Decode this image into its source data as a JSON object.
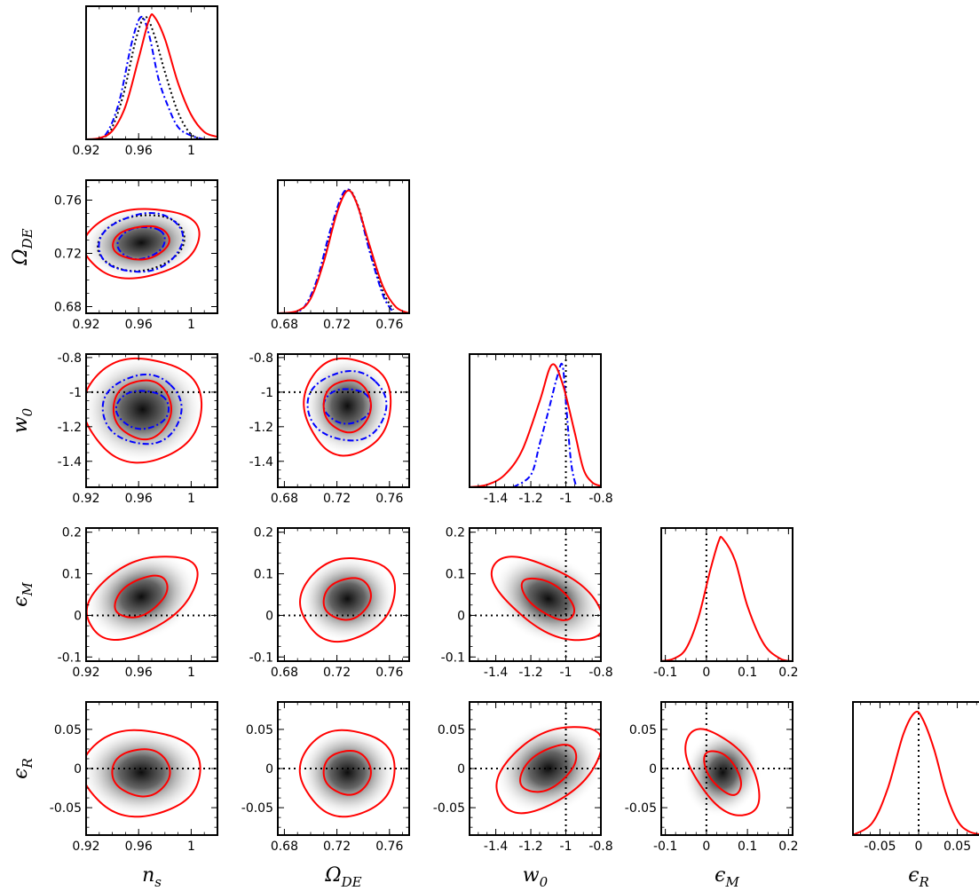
{
  "chart_data": {
    "type": "corner-plot",
    "parameters": [
      {
        "key": "ns",
        "symbol": "n",
        "subscript": "s",
        "range": [
          0.92,
          1.02
        ],
        "ticks": [
          0.92,
          0.96,
          1
        ],
        "tick_labels": [
          "0.92",
          "0.96",
          "1"
        ]
      },
      {
        "key": "ode",
        "symbol": "Ω",
        "subscript": "DE",
        "range": [
          0.675,
          0.775
        ],
        "ticks": [
          0.68,
          0.72,
          0.76
        ],
        "tick_labels": [
          "0.68",
          "0.72",
          "0.76"
        ]
      },
      {
        "key": "w0",
        "symbol": "w",
        "subscript": "0",
        "range": [
          -1.55,
          -0.8
        ],
        "ticks": [
          -1.4,
          -1.2,
          -1,
          -0.8
        ],
        "tick_labels": [
          "-1.4",
          "-1.2",
          "-1",
          "-0.8"
        ],
        "y_ticks": [
          -1.4,
          -1.2,
          -1,
          -0.8
        ],
        "y_tick_labels": [
          "-1.4",
          "-1.2",
          "-1",
          "-0.8"
        ],
        "y_range": [
          -1.55,
          -0.78
        ]
      },
      {
        "key": "em",
        "symbol": "ϵ",
        "subscript": "M",
        "range": [
          -0.11,
          0.21
        ],
        "ticks": [
          -0.1,
          0,
          0.1,
          0.2
        ],
        "tick_labels": [
          "-0.1",
          "0",
          "0.1",
          "0.2"
        ]
      },
      {
        "key": "er",
        "symbol": "ϵ",
        "subscript": "R",
        "range": [
          -0.085,
          0.085
        ],
        "ticks": [
          -0.05,
          0,
          0.05
        ],
        "tick_labels": [
          "-0.05",
          "0",
          "0.05"
        ]
      }
    ],
    "reference_lines": {
      "w0": -1,
      "em": 0,
      "er": 0
    },
    "series": [
      {
        "style": "solid",
        "color": "#ff0000"
      },
      {
        "style": "dash-dot",
        "color": "#0000ff"
      },
      {
        "style": "dotted",
        "color": "#000000"
      }
    ],
    "marginals": [
      {
        "param": "ns",
        "red": [
          [
            0.92,
            0
          ],
          [
            0.93,
            0.01
          ],
          [
            0.94,
            0.07
          ],
          [
            0.95,
            0.27
          ],
          [
            0.96,
            0.66
          ],
          [
            0.968,
            0.98
          ],
          [
            0.972,
            1.0
          ],
          [
            0.98,
            0.82
          ],
          [
            0.99,
            0.46
          ],
          [
            1.0,
            0.2
          ],
          [
            1.01,
            0.06
          ],
          [
            1.02,
            0.02
          ]
        ],
        "blue": [
          [
            0.925,
            0
          ],
          [
            0.935,
            0.04
          ],
          [
            0.945,
            0.3
          ],
          [
            0.955,
            0.8
          ],
          [
            0.962,
            1.0
          ],
          [
            0.968,
            0.85
          ],
          [
            0.975,
            0.5
          ],
          [
            0.982,
            0.28
          ],
          [
            0.99,
            0.1
          ],
          [
            1.0,
            0.03
          ],
          [
            1.01,
            0
          ]
        ],
        "black": [
          [
            0.928,
            0
          ],
          [
            0.938,
            0.06
          ],
          [
            0.948,
            0.35
          ],
          [
            0.958,
            0.82
          ],
          [
            0.965,
            1.0
          ],
          [
            0.972,
            0.85
          ],
          [
            0.98,
            0.55
          ],
          [
            0.99,
            0.22
          ],
          [
            1.0,
            0.04
          ],
          [
            1.01,
            0
          ]
        ]
      },
      {
        "param": "ode",
        "red": [
          [
            0.675,
            0
          ],
          [
            0.69,
            0.02
          ],
          [
            0.7,
            0.12
          ],
          [
            0.71,
            0.42
          ],
          [
            0.72,
            0.82
          ],
          [
            0.728,
            1.0
          ],
          [
            0.735,
            0.9
          ],
          [
            0.745,
            0.55
          ],
          [
            0.755,
            0.22
          ],
          [
            0.765,
            0.05
          ],
          [
            0.775,
            0
          ]
        ],
        "blue": [
          [
            0.685,
            0
          ],
          [
            0.695,
            0.05
          ],
          [
            0.705,
            0.28
          ],
          [
            0.715,
            0.68
          ],
          [
            0.726,
            1.0
          ],
          [
            0.735,
            0.9
          ],
          [
            0.745,
            0.5
          ],
          [
            0.755,
            0.15
          ],
          [
            0.762,
            0.02
          ]
        ],
        "black": [
          [
            0.685,
            0
          ],
          [
            0.695,
            0.05
          ],
          [
            0.705,
            0.26
          ],
          [
            0.715,
            0.66
          ],
          [
            0.727,
            1.0
          ],
          [
            0.736,
            0.88
          ],
          [
            0.745,
            0.52
          ],
          [
            0.755,
            0.18
          ],
          [
            0.763,
            0.03
          ]
        ]
      },
      {
        "param": "w0",
        "red": [
          [
            -1.55,
            0
          ],
          [
            -1.45,
            0.02
          ],
          [
            -1.35,
            0.1
          ],
          [
            -1.25,
            0.3
          ],
          [
            -1.15,
            0.7
          ],
          [
            -1.08,
            1.0
          ],
          [
            -1.02,
            0.85
          ],
          [
            -0.95,
            0.45
          ],
          [
            -0.9,
            0.15
          ],
          [
            -0.85,
            0.04
          ],
          [
            -0.8,
            0.01
          ]
        ],
        "blue": [
          [
            -1.3,
            0
          ],
          [
            -1.2,
            0.1
          ],
          [
            -1.15,
            0.35
          ],
          [
            -1.1,
            0.62
          ],
          [
            -1.05,
            0.9
          ],
          [
            -1.02,
            1.0
          ],
          [
            -1.0,
            0.7
          ],
          [
            -0.97,
            0.2
          ],
          [
            -0.94,
            0
          ]
        ]
      },
      {
        "param": "em",
        "red": [
          [
            -0.11,
            0
          ],
          [
            -0.08,
            0.02
          ],
          [
            -0.05,
            0.1
          ],
          [
            -0.02,
            0.35
          ],
          [
            0.01,
            0.75
          ],
          [
            0.03,
            0.98
          ],
          [
            0.04,
            1.0
          ],
          [
            0.07,
            0.82
          ],
          [
            0.1,
            0.45
          ],
          [
            0.14,
            0.14
          ],
          [
            0.18,
            0.02
          ],
          [
            0.21,
            0
          ]
        ]
      },
      {
        "param": "er",
        "red": [
          [
            -0.085,
            0
          ],
          [
            -0.06,
            0.1
          ],
          [
            -0.04,
            0.38
          ],
          [
            -0.02,
            0.82
          ],
          [
            -0.005,
            1.0
          ],
          [
            0.005,
            0.95
          ],
          [
            0.02,
            0.7
          ],
          [
            0.035,
            0.35
          ],
          [
            0.05,
            0.12
          ],
          [
            0.065,
            0.03
          ],
          [
            0.085,
            0
          ]
        ]
      }
    ],
    "joint_2d": [
      {
        "x": "ns",
        "y": "ode",
        "center": [
          0.962,
          0.728
        ],
        "red_68": [
          0.0215,
          0.0125
        ],
        "red_95": [
          0.044,
          0.026
        ],
        "blue_68": [
          0.018,
          0.012
        ],
        "blue_95": [
          0.032,
          0.022
        ],
        "black_95": [
          0.033,
          0.021
        ],
        "corr": 0.15
      },
      {
        "x": "ns",
        "y": "w0",
        "center": [
          0.963,
          -1.1
        ],
        "red_68": [
          0.022,
          0.17
        ],
        "red_95": [
          0.045,
          0.3
        ],
        "blue_68": [
          0.02,
          0.11
        ],
        "blue_95": [
          0.03,
          0.2
        ],
        "corr": 0.0
      },
      {
        "x": "ode",
        "y": "w0",
        "center": [
          0.728,
          -1.08
        ],
        "red_68": [
          0.018,
          0.15
        ],
        "red_95": [
          0.033,
          0.28
        ],
        "blue_68": [
          0.018,
          0.1
        ],
        "blue_95": [
          0.03,
          0.2
        ],
        "corr": 0.0
      },
      {
        "x": "ns",
        "y": "em",
        "center": [
          0.962,
          0.045
        ],
        "red_68": [
          0.02,
          0.05
        ],
        "red_95": [
          0.042,
          0.1
        ],
        "corr": 0.45
      },
      {
        "x": "ode",
        "y": "em",
        "center": [
          0.728,
          0.04
        ],
        "red_68": [
          0.018,
          0.05
        ],
        "red_95": [
          0.036,
          0.1
        ],
        "corr": 0.15
      },
      {
        "x": "w0",
        "y": "em",
        "center": [
          -1.1,
          0.04
        ],
        "red_68": [
          0.15,
          0.05
        ],
        "red_95": [
          0.32,
          0.1
        ],
        "corr": -0.6
      },
      {
        "x": "ns",
        "y": "er",
        "center": [
          0.962,
          -0.005
        ],
        "red_68": [
          0.022,
          0.03
        ],
        "red_95": [
          0.045,
          0.055
        ],
        "corr": 0.0
      },
      {
        "x": "ode",
        "y": "er",
        "center": [
          0.728,
          -0.005
        ],
        "red_68": [
          0.018,
          0.028
        ],
        "red_95": [
          0.036,
          0.055
        ],
        "corr": 0.0
      },
      {
        "x": "w0",
        "y": "er",
        "center": [
          -1.1,
          0.0
        ],
        "red_68": [
          0.16,
          0.03
        ],
        "red_95": [
          0.3,
          0.055
        ],
        "corr": 0.5
      },
      {
        "x": "em",
        "y": "er",
        "center": [
          0.04,
          -0.005
        ],
        "red_68": [
          0.045,
          0.028
        ],
        "red_95": [
          0.09,
          0.055
        ],
        "corr": -0.55
      }
    ]
  }
}
